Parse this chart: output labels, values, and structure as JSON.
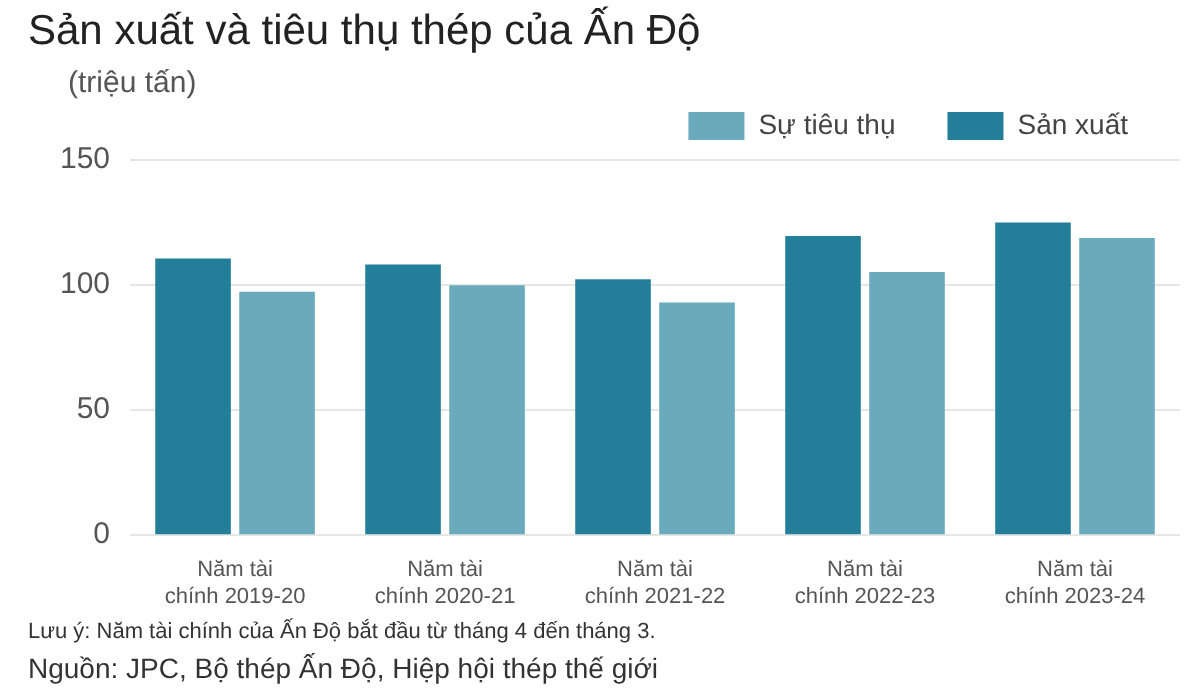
{
  "chart_data": {
    "type": "bar",
    "title": "Sản xuất và tiêu thụ thép của Ấn Độ",
    "ylabel": "(triệu tấn)",
    "categories": [
      "Năm tài chính 2019-20",
      "Năm tài chính 2020-21",
      "Năm tài chính 2021-22",
      "Năm tài chính 2022-23",
      "Năm tài chính 2023-24"
    ],
    "series": [
      {
        "name": "Sản xuất",
        "color": "#237f99",
        "values": [
          110.6,
          108.2,
          102.3,
          119.6,
          125.0
        ]
      },
      {
        "name": "Sự tiêu thụ",
        "color": "#6aaabd",
        "values": [
          97.3,
          99.9,
          93.0,
          105.2,
          118.8
        ]
      }
    ],
    "ylim": [
      0,
      150
    ],
    "yticks": [
      0,
      50,
      100,
      150
    ],
    "grid": "y",
    "legend": "top right",
    "annotations": [
      "Lưu ý: Năm tài chính của Ấn Độ bắt đầu từ tháng 4 đến tháng 3.",
      "Nguồn: JPC, Bộ thép Ấn Độ, Hiệp hội thép thế giới"
    ]
  }
}
